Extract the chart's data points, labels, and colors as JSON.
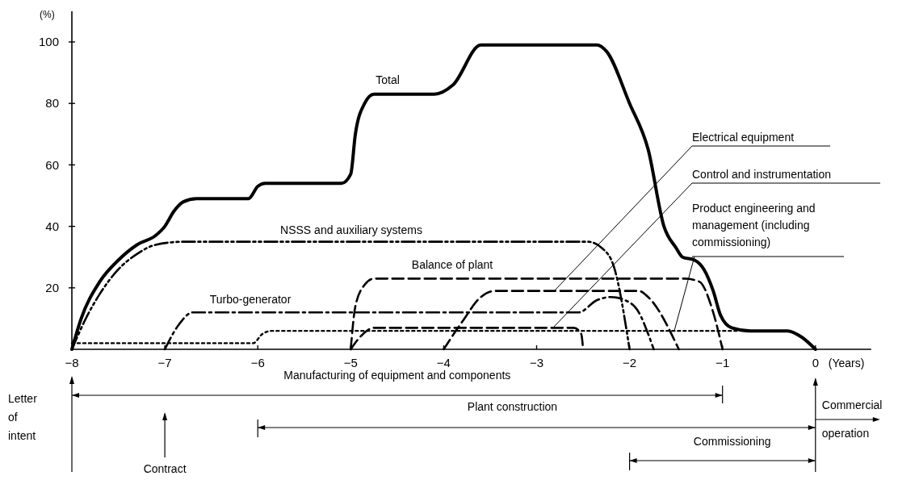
{
  "chart_data": {
    "type": "line",
    "ylabel": "(%)",
    "xlabel": "(Years)",
    "xlim": [
      -8,
      0.6
    ],
    "ylim": [
      0,
      110
    ],
    "xticks": [
      {
        "value": -8,
        "label": "−8"
      },
      {
        "value": -7,
        "label": "−7"
      },
      {
        "value": -6,
        "label": "−6"
      },
      {
        "value": -5,
        "label": "−5"
      },
      {
        "value": -4,
        "label": "−4"
      },
      {
        "value": -3,
        "label": "−3"
      },
      {
        "value": -2,
        "label": "−2"
      },
      {
        "value": -1,
        "label": "−1"
      },
      0
    ],
    "yticks": [
      20,
      40,
      60,
      80,
      100
    ],
    "grid": false,
    "legend": false,
    "marker": "none",
    "series": [
      {
        "name": "Total",
        "color": "#000000",
        "line_style": "solid",
        "x": [
          -8,
          -7.9,
          -7.7,
          -7.5,
          -7.3,
          -7.1,
          -7.0,
          -6.9,
          -6.8,
          -6.66,
          -6.1,
          -6.0,
          -5.92,
          -5.1,
          -5.0,
          -4.95,
          -4.85,
          -4.75,
          -4.1,
          -3.9,
          -3.6,
          -2.35,
          -2.25,
          -2.0,
          -1.8,
          -1.63,
          -1.5,
          -1.43,
          -1.3,
          -1.2,
          -1.1,
          -1.02,
          -0.9,
          -0.7,
          -0.3,
          -0.15,
          0
        ],
        "values": [
          0,
          10,
          22,
          29,
          34,
          37,
          40,
          45,
          48,
          49,
          49,
          53,
          54,
          54,
          57,
          70,
          80,
          83,
          83,
          86,
          99,
          99,
          97,
          80,
          65,
          40,
          33,
          30,
          29,
          26,
          19,
          11,
          7,
          6,
          6,
          4,
          0
        ]
      },
      {
        "name": "NSSS and auxiliary systems",
        "color": "#000000",
        "line_style": "dashdotdot",
        "x": [
          -8,
          -7.85,
          -7.7,
          -7.5,
          -7.3,
          -7.1,
          -6.8,
          -2.45,
          -2.3,
          -2.17,
          -2.0
        ],
        "values": [
          0,
          10,
          18,
          26,
          31,
          34,
          35,
          35,
          33,
          27,
          0
        ]
      },
      {
        "name": "Balance of plant",
        "color": "#000000",
        "line_style": "dashed",
        "x": [
          -5,
          -4.95,
          -4.85,
          -4.75,
          -1.4,
          -1.25,
          -1.1,
          -1.0
        ],
        "values": [
          0,
          14,
          21,
          23,
          23,
          22,
          12,
          0
        ]
      },
      {
        "name": "Turbo-generator",
        "color": "#000000",
        "line_style": "dashdot",
        "x": [
          -7,
          -6.85,
          -6.7,
          -2.55,
          -2.35,
          -2.2,
          -2.05,
          -1.9,
          -1.8,
          -1.74
        ],
        "values": [
          0,
          8,
          12,
          12,
          16,
          17,
          16,
          12,
          5,
          0
        ]
      },
      {
        "name": "Electrical equipment",
        "color": "#000000",
        "line_style": "dashed",
        "x": [
          -4,
          -3.8,
          -3.6,
          -3.45,
          -1.9,
          -1.8,
          -1.47
        ],
        "values": [
          0,
          9,
          17,
          19,
          19,
          17,
          0
        ]
      },
      {
        "name": "Control and instrumentation",
        "color": "#000000",
        "line_style": "dashed",
        "x": [
          -5,
          -4.9,
          -4.75,
          -2.6,
          -2.52,
          -2.5
        ],
        "values": [
          0,
          4,
          7,
          7,
          5,
          0
        ]
      },
      {
        "name": "Product engineering and management (including commissioning)",
        "color": "#000000",
        "line_style": "dotted",
        "x": [
          -8,
          -6.05,
          -5.95,
          -5.85,
          -0.85
        ],
        "values": [
          2,
          2,
          5,
          6,
          6
        ]
      }
    ],
    "annotations": [
      "Manufacturing of equipment and components",
      "Plant construction",
      "Commissioning",
      "Letter of intent",
      "Contract",
      "Commercial operation"
    ]
  }
}
